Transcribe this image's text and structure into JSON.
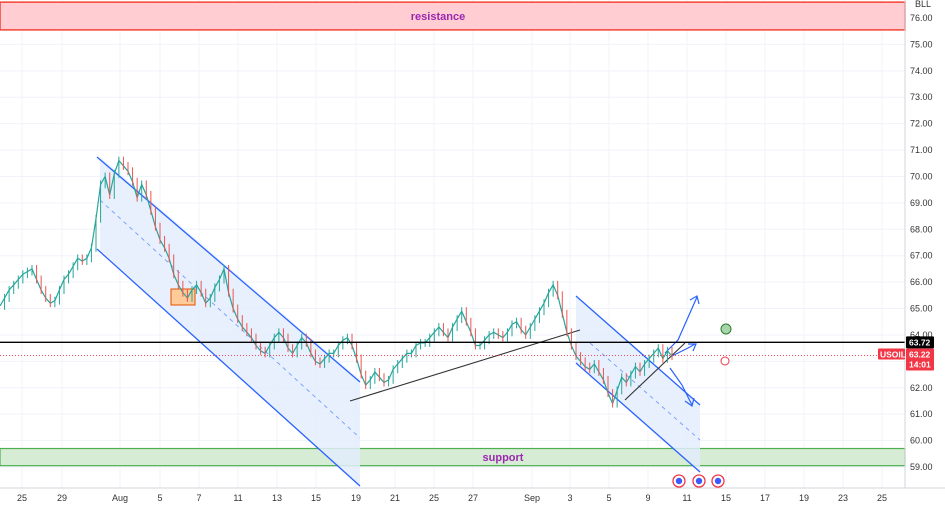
{
  "chart_data": {
    "type": "candlestick",
    "symbol": "USOIL",
    "currency_label": "BLL",
    "y_range": [
      58.9,
      76.5
    ],
    "y_ticks": [
      "59.00",
      "60.00",
      "61.00",
      "62.00",
      "63.00",
      "64.00",
      "65.00",
      "66.00",
      "67.00",
      "68.00",
      "69.00",
      "70.00",
      "71.00",
      "72.00",
      "73.00",
      "74.00",
      "75.00",
      "76.00"
    ],
    "x_tick_labels": [
      "25",
      "29",
      "Aug",
      "5",
      "7",
      "11",
      "13",
      "15",
      "19",
      "21",
      "25",
      "27",
      "Sep",
      "3",
      "5",
      "9",
      "11",
      "15",
      "17",
      "19",
      "23",
      "25"
    ],
    "zones": {
      "resistance": {
        "label": "resistance",
        "low": 75.55,
        "high": 76.6,
        "color": "#ffcdd2",
        "border": "#f44336"
      },
      "support": {
        "label": "support",
        "low": 59.05,
        "high": 59.7,
        "color": "#d7ecd5",
        "border": "#4caf50"
      }
    },
    "horizontal_line": {
      "value": 63.72,
      "label": "63.72"
    },
    "last_price": {
      "value": 63.22,
      "label": "63.22",
      "countdown": "14:01"
    },
    "series": [
      {
        "values": [
          65.1,
          65.4,
          65.7,
          65.9,
          66.1,
          66.3,
          66.4,
          66.5,
          66.1,
          65.7,
          65.4,
          65.2,
          65.3,
          65.7,
          66.1,
          66.3,
          66.6,
          66.9,
          66.8,
          66.9,
          67.3,
          68.4,
          69.7,
          70.0,
          69.3,
          70.1,
          70.6,
          70.4,
          70.2,
          69.8,
          69.2,
          69.7,
          69.3,
          68.7,
          68.1,
          67.6,
          67.3,
          66.9,
          66.3,
          65.9,
          65.6,
          65.4,
          65.7,
          65.9,
          65.6,
          65.2,
          65.4,
          65.8,
          66.1,
          66.5,
          65.6,
          65.0,
          64.6,
          64.3,
          64.1,
          63.9,
          63.6,
          63.4,
          63.3,
          63.6,
          63.9,
          64.1,
          63.9,
          63.5,
          63.3,
          63.6,
          63.9,
          63.7,
          63.3,
          63.0,
          62.9,
          63.1,
          63.3,
          63.3,
          63.6,
          63.8,
          63.9,
          63.6,
          63.1,
          62.5,
          62.1,
          62.3,
          62.6,
          62.4,
          62.2,
          62.3,
          62.7,
          62.9,
          63.1,
          63.3,
          63.3,
          63.6,
          63.7,
          63.7,
          63.9,
          64.1,
          64.3,
          64.1,
          63.9,
          64.3,
          64.6,
          64.9,
          64.5,
          64.1,
          63.6,
          63.6,
          63.8,
          64.0,
          64.1,
          64.0,
          63.9,
          64.1,
          64.4,
          64.5,
          64.2,
          64.0,
          64.3,
          64.6,
          64.9,
          65.2,
          65.6,
          65.9,
          65.5,
          64.8,
          64.1,
          63.6,
          63.2,
          63.0,
          62.8,
          62.7,
          62.9,
          62.6,
          62.3,
          61.8,
          61.4,
          61.9,
          62.4,
          62.2,
          62.5,
          62.8,
          62.6,
          62.9,
          63.1,
          63.3,
          63.5,
          63.1,
          63.4,
          63.2
        ]
      }
    ],
    "drawings": {
      "channels": [
        "descending channel Jul 31 – Aug 19",
        "descending channel Sep 3 – Sep 12"
      ],
      "trendline": "rising support line Aug 19 – Sep 3",
      "projection_arrows": [
        "up",
        "up",
        "down"
      ],
      "markers": [
        "green circle near 64.3",
        "red circle near 63.1"
      ]
    }
  }
}
